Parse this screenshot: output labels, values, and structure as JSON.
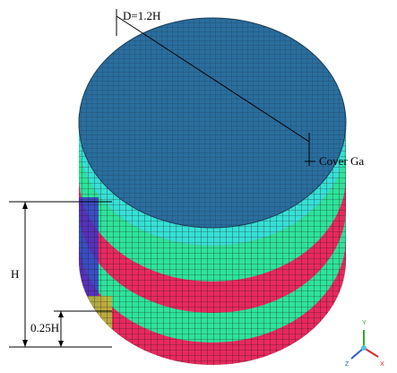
{
  "labels": {
    "diameter": "D=1.2H",
    "cover": "Cover Ga",
    "height": "H",
    "quarter_height": "0.25H"
  },
  "axes": {
    "y": "Y",
    "z": "Z",
    "x": "X"
  }
}
